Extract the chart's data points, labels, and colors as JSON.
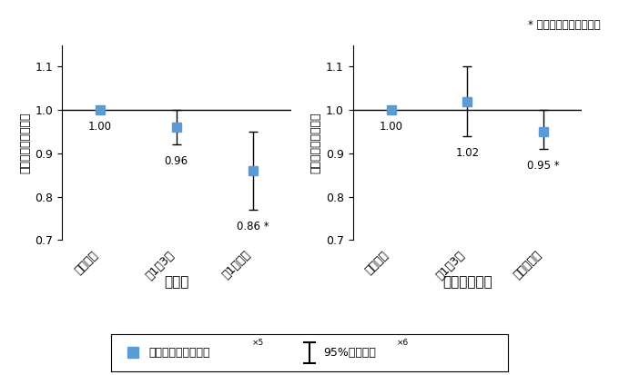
{
  "panel1": {
    "title": "殺虫剤",
    "categories": [
      "不使用群",
      "月1。3回",
      "週1回以上"
    ],
    "values": [
      1.0,
      0.96,
      0.86
    ],
    "ci_low": [
      1.0,
      0.92,
      0.77
    ],
    "ci_high": [
      1.0,
      1.0,
      0.95
    ],
    "labels": [
      "1.00",
      "0.96",
      "0.86"
    ],
    "label_star": [
      false,
      false,
      true
    ]
  },
  "panel2": {
    "title": "医療用消毒剤",
    "categories": [
      "不使用群",
      "月1。3回",
      "週１回以上"
    ],
    "values": [
      1.0,
      1.02,
      0.95
    ],
    "ci_low": [
      1.0,
      0.94,
      0.91
    ],
    "ci_high": [
      1.0,
      1.1,
      1.0
    ],
    "labels": [
      "1.00",
      "1.02",
      "0.95"
    ],
    "label_star": [
      false,
      false,
      true
    ]
  },
  "ylabel": "不使用群に対する比",
  "ylim": [
    0.7,
    1.15
  ],
  "yticks": [
    0.7,
    0.8,
    0.9,
    1.0,
    1.1
  ],
  "hline_y": 1.0,
  "marker_color": "#5B9BD5",
  "marker_size": 7,
  "legend_label1": "不使用群に対する比",
  "legend_sup1": "×5",
  "legend_label2": "95%信頼区間",
  "legend_sup2": "×6",
  "note": "* 統計学的に有意な結果",
  "background_color": "#ffffff"
}
